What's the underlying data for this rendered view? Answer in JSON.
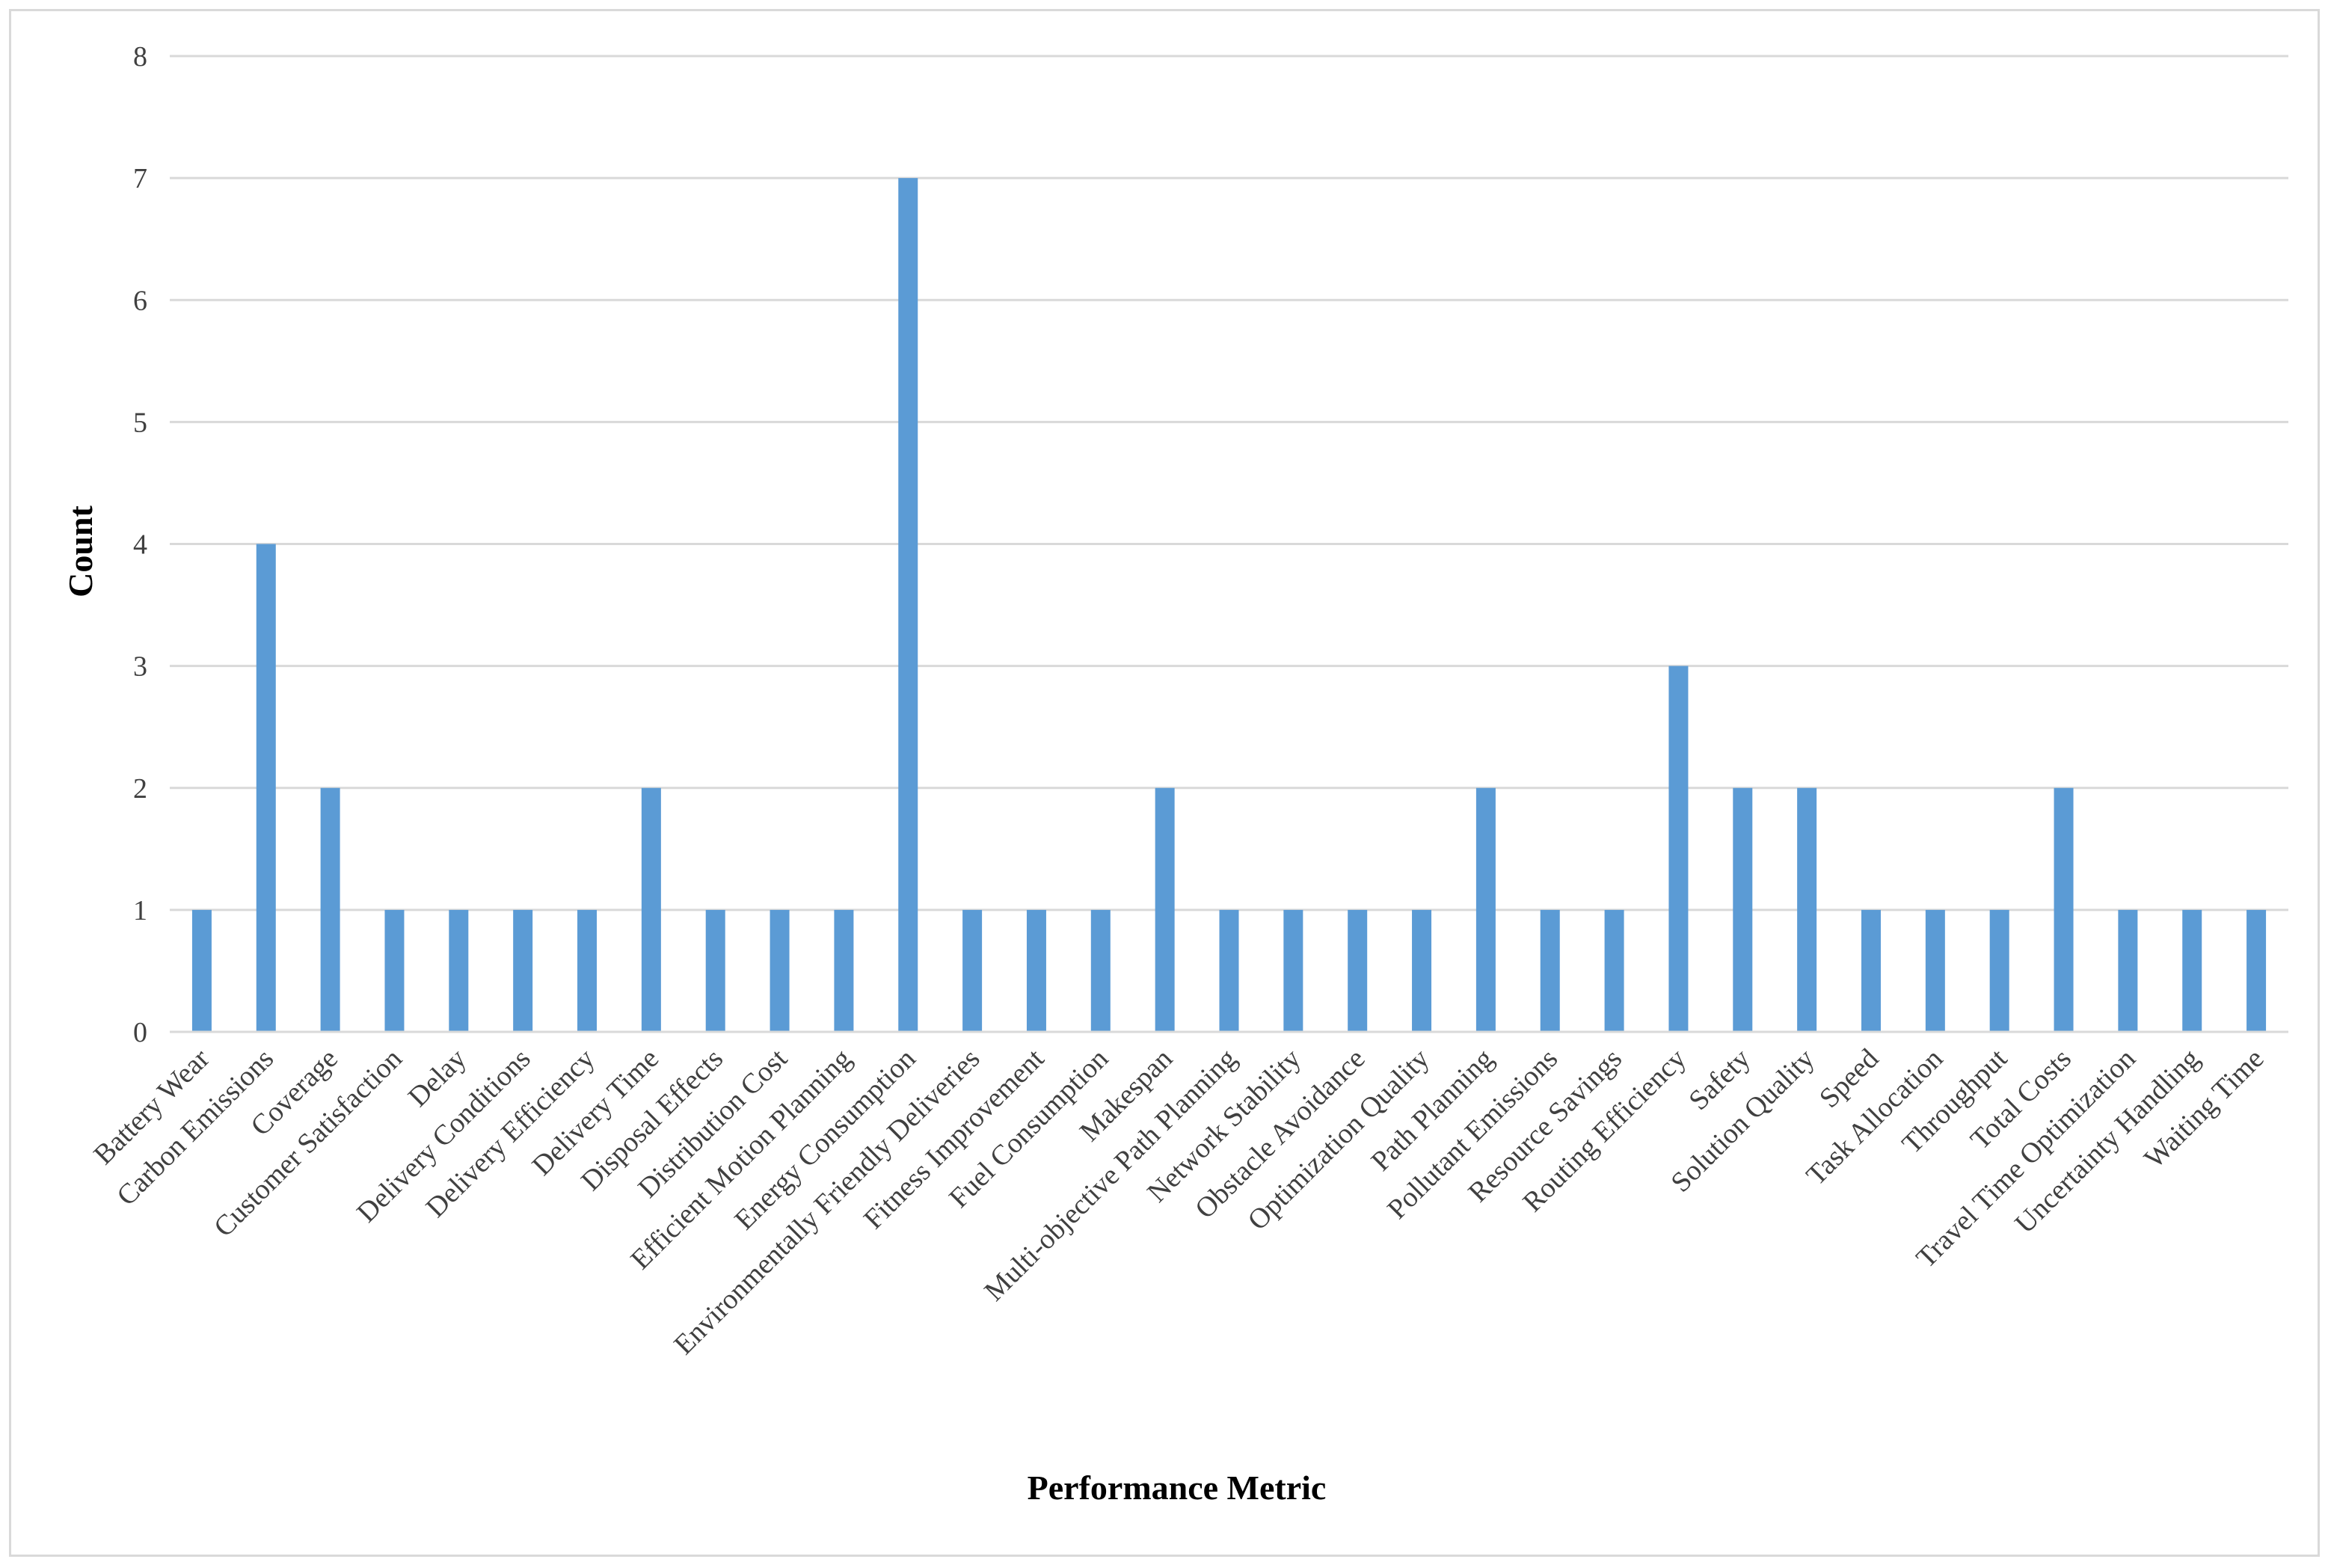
{
  "chart_data": {
    "type": "bar",
    "title": "",
    "xlabel": "Performance Metric",
    "ylabel": "Count",
    "ylim": [
      0,
      8
    ],
    "yticks": [
      0,
      1,
      2,
      3,
      4,
      5,
      6,
      7,
      8
    ],
    "grid": true,
    "legend": "none",
    "bar_color": "#5b9bd5",
    "grid_color": "#d9d9d9",
    "categories": [
      "Battery Wear",
      "Carbon Emissions",
      "Coverage",
      "Customer Satisfaction",
      "Delay",
      "Delivery Conditions",
      "Delivery Efficiency",
      "Delivery Time",
      "Disposal Effects",
      "Distribution Cost",
      "Efficient Motion Planning",
      "Energy Consumption",
      "Environmentally Friendly Deliveries",
      "Fitness Improvement",
      "Fuel Consumption",
      "Makespan",
      "Multi-objective Path Planning",
      "Network Stability",
      "Obstacle Avoidance",
      "Optimization Quality",
      "Path Planning",
      "Pollutant Emissions",
      "Resource Savings",
      "Routing Efficiency",
      "Safety",
      "Solution Quality",
      "Speed",
      "Task Allocation",
      "Throughput",
      "Total Costs",
      "Travel Time Optimization",
      "Uncertainty Handling",
      "Waiting Time"
    ],
    "values": [
      1,
      4,
      2,
      1,
      1,
      1,
      1,
      2,
      1,
      1,
      1,
      7,
      1,
      1,
      1,
      2,
      1,
      1,
      1,
      1,
      2,
      1,
      1,
      3,
      2,
      2,
      1,
      1,
      1,
      2,
      1,
      1,
      1
    ]
  }
}
